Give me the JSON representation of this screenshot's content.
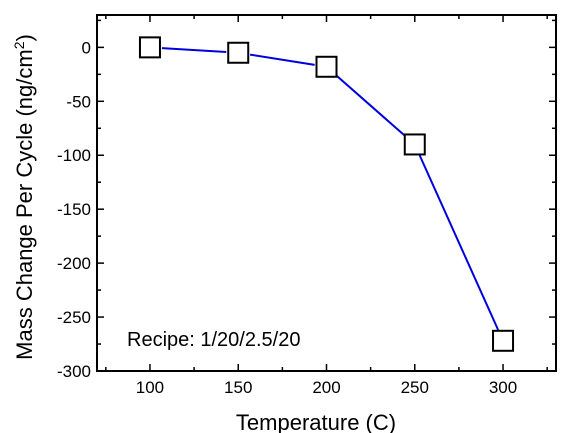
{
  "chart_data": {
    "type": "line",
    "xlabel": "Temperature (C)",
    "ylabel": {
      "main": "Mass Change Per Cycle (ng/cm",
      "sup": "2",
      "close": ")"
    },
    "annotation": "Recipe: 1/20/2.5/20",
    "x": [
      100,
      150,
      200,
      250,
      300
    ],
    "series": [
      {
        "values": [
          0,
          -5,
          -18,
          -90,
          -272
        ],
        "color": "#0000dd",
        "marker": "open-square"
      }
    ],
    "xlim": [
      70,
      330
    ],
    "ylim": [
      -300,
      30
    ],
    "xticks": [
      100,
      150,
      200,
      250,
      300
    ],
    "yticks": [
      0,
      -50,
      -100,
      -150,
      -200,
      -250,
      -300
    ],
    "grid": false
  }
}
